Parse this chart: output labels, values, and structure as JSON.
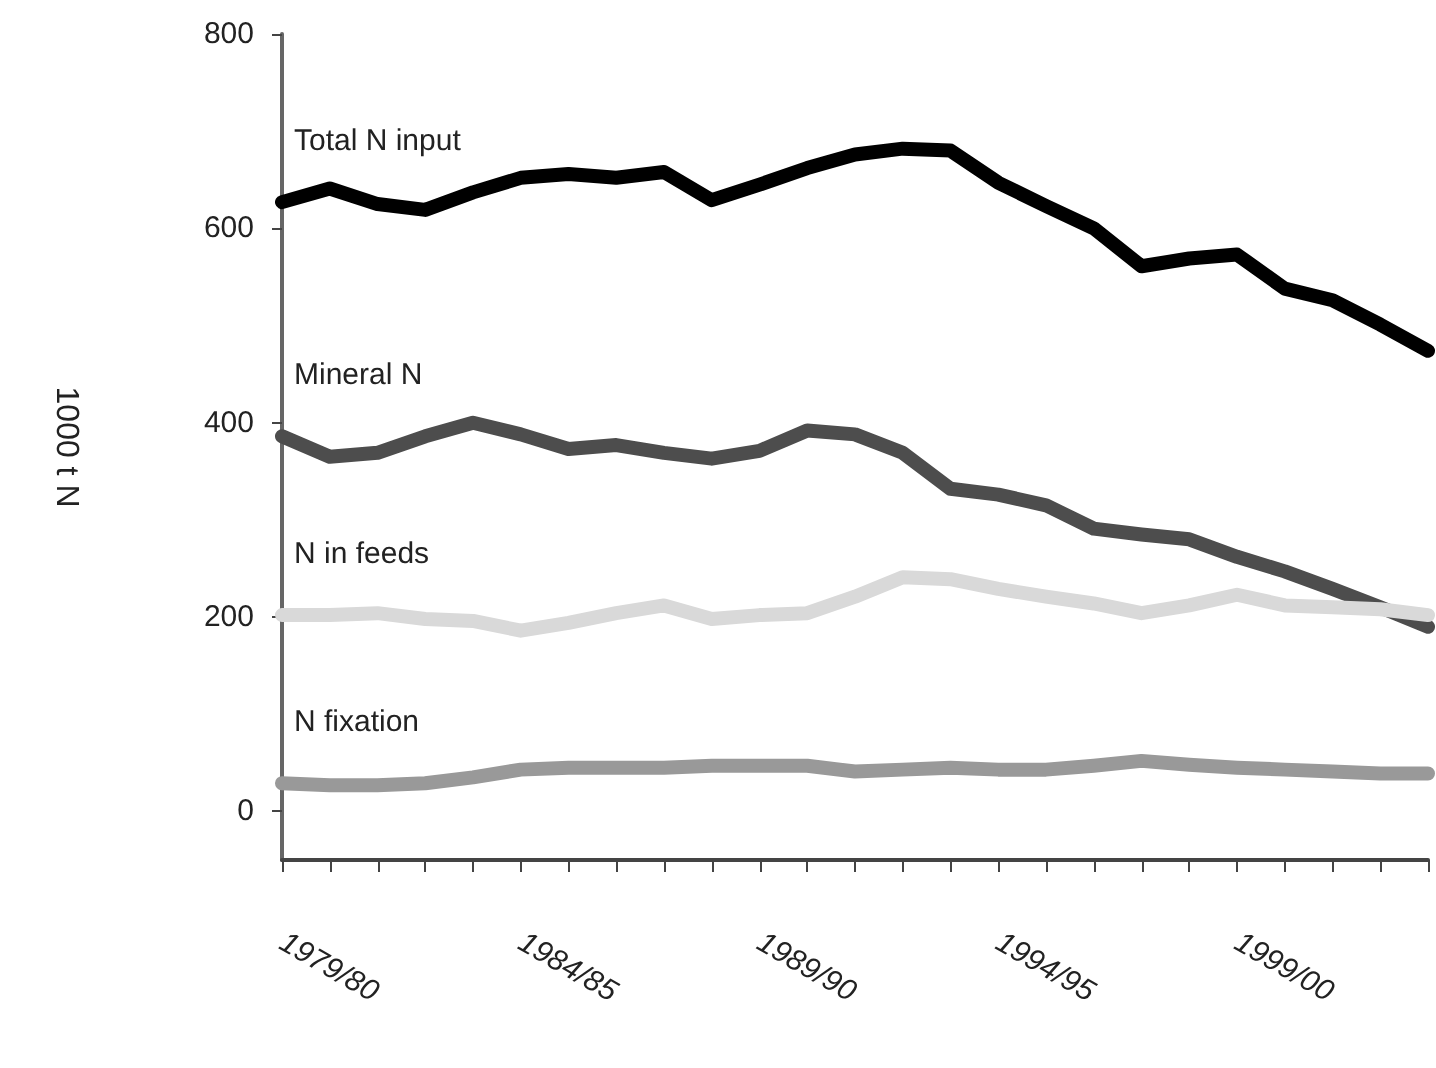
{
  "chart_data": {
    "type": "line",
    "ylabel": "1000 t N",
    "categories": [
      "1979/80",
      null,
      null,
      null,
      null,
      "1984/85",
      null,
      null,
      null,
      null,
      "1989/90",
      null,
      null,
      null,
      null,
      "1994/95",
      null,
      null,
      null,
      null,
      "1999/00",
      null,
      null,
      null,
      null
    ],
    "series": [
      {
        "name": "Total N input",
        "color": "#000000",
        "values": [
          627,
          641,
          625,
          619,
          637,
          652,
          656,
          652,
          658,
          629,
          645,
          662,
          676,
          682,
          680,
          647,
          623,
          600,
          561,
          569,
          573,
          538,
          526,
          501,
          474
        ]
      },
      {
        "name": "Mineral N",
        "color": "#4d4d4d",
        "values": [
          386,
          365,
          369,
          386,
          400,
          388,
          373,
          377,
          369,
          363,
          371,
          392,
          388,
          369,
          332,
          326,
          315,
          291,
          285,
          280,
          262,
          247,
          229,
          210,
          190
        ]
      },
      {
        "name": "N in feeds",
        "color": "#d9d9d9",
        "values": [
          202,
          202,
          204,
          198,
          196,
          186,
          194,
          204,
          212,
          198,
          202,
          204,
          221,
          241,
          239,
          229,
          221,
          214,
          204,
          212,
          223,
          212,
          210,
          208,
          202
        ]
      },
      {
        "name": "N fixation",
        "color": "#999999",
        "values": [
          29,
          27,
          27,
          29,
          35,
          43,
          45,
          45,
          45,
          47,
          47,
          47,
          41,
          43,
          45,
          43,
          43,
          47,
          52,
          48,
          45,
          43,
          41,
          39,
          39
        ]
      }
    ],
    "ylim": [
      -50,
      800
    ],
    "yticks": [
      0,
      200,
      400,
      600,
      800
    ],
    "grid": false,
    "legend": false,
    "marker": "none",
    "line_style": "solid"
  }
}
